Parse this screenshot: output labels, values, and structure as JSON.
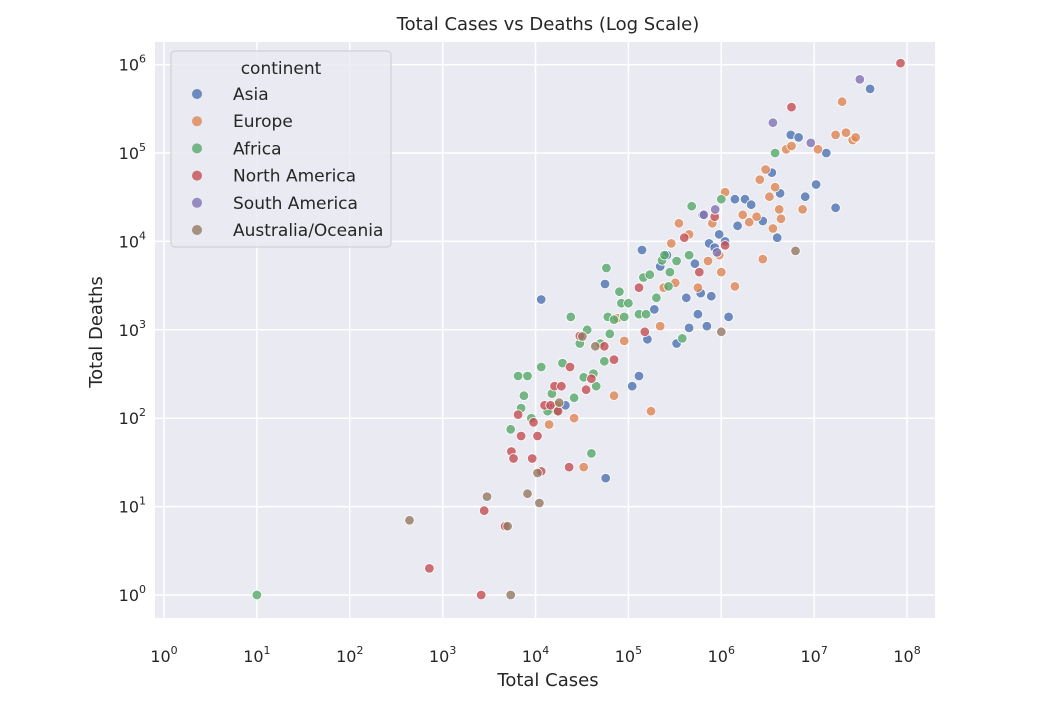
{
  "chart_data": {
    "type": "scatter",
    "title": "Total Cases vs Deaths (Log Scale)",
    "xlabel": "Total Cases",
    "ylabel": "Total Deaths",
    "xscale": "log",
    "yscale": "log",
    "xlim": [
      0.8,
      200000000
    ],
    "ylim": [
      0.55,
      1800000
    ],
    "grid": true,
    "x_ticks": [
      {
        "base": "10",
        "exp": "0",
        "value": 1
      },
      {
        "base": "10",
        "exp": "1",
        "value": 10
      },
      {
        "base": "10",
        "exp": "2",
        "value": 100
      },
      {
        "base": "10",
        "exp": "3",
        "value": 1000
      },
      {
        "base": "10",
        "exp": "4",
        "value": 10000
      },
      {
        "base": "10",
        "exp": "5",
        "value": 100000
      },
      {
        "base": "10",
        "exp": "6",
        "value": 1000000
      },
      {
        "base": "10",
        "exp": "7",
        "value": 10000000
      },
      {
        "base": "10",
        "exp": "8",
        "value": 100000000
      }
    ],
    "y_ticks": [
      {
        "base": "10",
        "exp": "0",
        "value": 1
      },
      {
        "base": "10",
        "exp": "1",
        "value": 10
      },
      {
        "base": "10",
        "exp": "2",
        "value": 100
      },
      {
        "base": "10",
        "exp": "3",
        "value": 1000
      },
      {
        "base": "10",
        "exp": "4",
        "value": 10000
      },
      {
        "base": "10",
        "exp": "5",
        "value": 100000
      },
      {
        "base": "10",
        "exp": "6",
        "value": 1000000
      }
    ],
    "legend": {
      "title": "continent",
      "placement": "top-left"
    },
    "series": [
      {
        "name": "Asia",
        "color": "#4c72b0",
        "points": [
          [
            11500,
            2200
          ],
          [
            56000,
            3300
          ],
          [
            57000,
            21
          ],
          [
            110000,
            230
          ],
          [
            130000,
            300
          ],
          [
            15000,
            130
          ],
          [
            21000,
            140
          ],
          [
            140000,
            8000
          ],
          [
            160000,
            780
          ],
          [
            190000,
            1700
          ],
          [
            220000,
            5200
          ],
          [
            260000,
            7000
          ],
          [
            330000,
            700
          ],
          [
            420000,
            2300
          ],
          [
            450000,
            1050
          ],
          [
            520000,
            5600
          ],
          [
            560000,
            1500
          ],
          [
            600000,
            2600
          ],
          [
            630000,
            20000
          ],
          [
            700000,
            1100
          ],
          [
            740000,
            9500
          ],
          [
            780000,
            2400
          ],
          [
            850000,
            8500
          ],
          [
            950000,
            12000
          ],
          [
            1100000,
            10000
          ],
          [
            1200000,
            1400
          ],
          [
            1400000,
            30000
          ],
          [
            1500000,
            15000
          ],
          [
            1800000,
            30000
          ],
          [
            2100000,
            26000
          ],
          [
            2800000,
            17000
          ],
          [
            3500000,
            60000
          ],
          [
            4000000,
            11000
          ],
          [
            4300000,
            35000
          ],
          [
            5600000,
            160000
          ],
          [
            6800000,
            150000
          ],
          [
            8000000,
            32000
          ],
          [
            10500000,
            44000
          ],
          [
            13500000,
            100000
          ],
          [
            17000000,
            24000
          ],
          [
            40000000,
            530000
          ]
        ]
      },
      {
        "name": "Europe",
        "color": "#dd8452",
        "points": [
          [
            14000,
            85
          ],
          [
            17000,
            140
          ],
          [
            26000,
            100
          ],
          [
            33000,
            28
          ],
          [
            70000,
            180
          ],
          [
            76000,
            1350
          ],
          [
            90000,
            750
          ],
          [
            175000,
            120
          ],
          [
            220000,
            1100
          ],
          [
            240000,
            3000
          ],
          [
            290000,
            9500
          ],
          [
            320000,
            3400
          ],
          [
            350000,
            16000
          ],
          [
            450000,
            12000
          ],
          [
            560000,
            3000
          ],
          [
            720000,
            6000
          ],
          [
            800000,
            16000
          ],
          [
            950000,
            7000
          ],
          [
            1000000,
            4500
          ],
          [
            1100000,
            36000
          ],
          [
            1400000,
            3100
          ],
          [
            1700000,
            20000
          ],
          [
            2000000,
            16500
          ],
          [
            2400000,
            19000
          ],
          [
            2600000,
            50000
          ],
          [
            2800000,
            6300
          ],
          [
            3000000,
            65000
          ],
          [
            3300000,
            32000
          ],
          [
            3600000,
            14000
          ],
          [
            3800000,
            41000
          ],
          [
            4200000,
            23000
          ],
          [
            4400000,
            18000
          ],
          [
            5000000,
            110000
          ],
          [
            5700000,
            120000
          ],
          [
            7500000,
            23000
          ],
          [
            11000000,
            110000
          ],
          [
            17000000,
            160000
          ],
          [
            20000000,
            380000
          ],
          [
            22000000,
            170000
          ],
          [
            26000000,
            140000
          ],
          [
            28000000,
            150000
          ]
        ]
      },
      {
        "name": "Africa",
        "color": "#55a868",
        "points": [
          [
            10,
            1
          ],
          [
            5400,
            75
          ],
          [
            6500,
            300
          ],
          [
            7000,
            130
          ],
          [
            7500,
            180
          ],
          [
            8200,
            300
          ],
          [
            9000,
            100
          ],
          [
            11500,
            380
          ],
          [
            13500,
            120
          ],
          [
            15000,
            190
          ],
          [
            17000,
            120
          ],
          [
            19500,
            420
          ],
          [
            24000,
            1400
          ],
          [
            26000,
            170
          ],
          [
            30000,
            700
          ],
          [
            33000,
            290
          ],
          [
            36000,
            1000
          ],
          [
            40000,
            40
          ],
          [
            42000,
            320
          ],
          [
            45000,
            230
          ],
          [
            50000,
            700
          ],
          [
            55000,
            440
          ],
          [
            58000,
            5000
          ],
          [
            60000,
            1400
          ],
          [
            63000,
            900
          ],
          [
            70000,
            1300
          ],
          [
            80000,
            2700
          ],
          [
            84000,
            2000
          ],
          [
            90000,
            1400
          ],
          [
            100000,
            2000
          ],
          [
            130000,
            1500
          ],
          [
            145000,
            3900
          ],
          [
            155000,
            1500
          ],
          [
            170000,
            4200
          ],
          [
            200000,
            2300
          ],
          [
            230000,
            6100
          ],
          [
            245000,
            7000
          ],
          [
            270000,
            3100
          ],
          [
            280000,
            4500
          ],
          [
            330000,
            6000
          ],
          [
            380000,
            800
          ],
          [
            450000,
            7000
          ],
          [
            480000,
            25000
          ],
          [
            1000000,
            30000
          ],
          [
            3800000,
            100000
          ]
        ]
      },
      {
        "name": "North America",
        "color": "#c44e52",
        "points": [
          [
            720,
            2
          ],
          [
            2600,
            1
          ],
          [
            2800,
            9
          ],
          [
            4700,
            6
          ],
          [
            5500,
            42
          ],
          [
            5800,
            35
          ],
          [
            6500,
            110
          ],
          [
            7000,
            63
          ],
          [
            9200,
            35
          ],
          [
            9500,
            90
          ],
          [
            10500,
            63
          ],
          [
            11500,
            25
          ],
          [
            12500,
            140
          ],
          [
            14500,
            140
          ],
          [
            16000,
            230
          ],
          [
            17500,
            120
          ],
          [
            19000,
            230
          ],
          [
            23000,
            28
          ],
          [
            23500,
            380
          ],
          [
            30000,
            850
          ],
          [
            35000,
            210
          ],
          [
            40000,
            280
          ],
          [
            55000,
            650
          ],
          [
            70000,
            460
          ],
          [
            130000,
            3000
          ],
          [
            150000,
            950
          ],
          [
            400000,
            11000
          ],
          [
            580000,
            4500
          ],
          [
            850000,
            19000
          ],
          [
            1100000,
            9000
          ],
          [
            5700000,
            330000
          ],
          [
            85000000,
            1040000
          ]
        ]
      },
      {
        "name": "South America",
        "color": "#8172b3",
        "points": [
          [
            650000,
            20000
          ],
          [
            860000,
            23000
          ],
          [
            900000,
            7500
          ],
          [
            3600000,
            220000
          ],
          [
            9200000,
            130000
          ],
          [
            31000000,
            680000
          ]
        ]
      },
      {
        "name": "Australia/Oceania",
        "color": "#937860",
        "points": [
          [
            440,
            7
          ],
          [
            3000,
            13
          ],
          [
            5000,
            6
          ],
          [
            5400,
            1
          ],
          [
            8200,
            14
          ],
          [
            10500,
            24
          ],
          [
            11000,
            11
          ],
          [
            18000,
            150
          ],
          [
            32000,
            840
          ],
          [
            44000,
            650
          ],
          [
            1000000,
            950
          ],
          [
            6300000,
            7800
          ]
        ]
      }
    ]
  }
}
